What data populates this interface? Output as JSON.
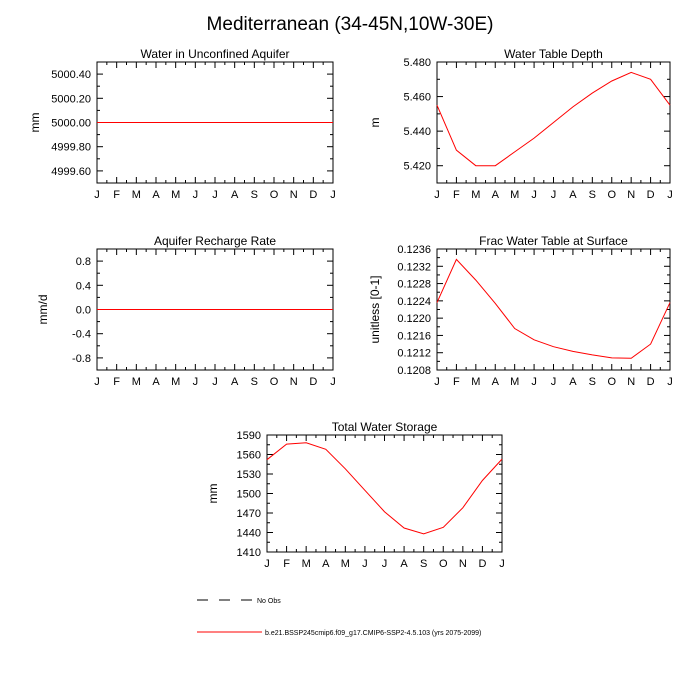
{
  "page_title": "Mediterranean (34-45N,10W-30E)",
  "colors": {
    "series": "#ff0000",
    "axis": "#000000",
    "background": "#ffffff"
  },
  "legend": {
    "items": [
      {
        "label": "No Obs",
        "style": "dashed",
        "color": "#000000"
      },
      {
        "label": "b.e21.BSSP245cmip6.f09_g17.CMIP6-SSP2-4.5.103 (yrs 2075-2099)",
        "style": "solid",
        "color": "#ff0000"
      }
    ]
  },
  "chart_data": [
    {
      "id": "water-unconfined-aquifer",
      "type": "line",
      "title": "Water in Unconfined Aquifer",
      "ylabel": "mm",
      "xlabel": "",
      "categories": [
        "J",
        "F",
        "M",
        "A",
        "M",
        "J",
        "J",
        "A",
        "S",
        "O",
        "N",
        "D",
        "J"
      ],
      "ylim": [
        4999.5,
        5000.5
      ],
      "yticks": [
        4999.6,
        4999.8,
        5000.0,
        5000.2,
        5000.4
      ],
      "ytick_labels": [
        "4999.60",
        "4999.80",
        "5000.00",
        "5000.20",
        "5000.40"
      ],
      "series": [
        {
          "name": "b.e21.BSSP245cmip6.f09_g17.CMIP6-SSP2-4.5.103",
          "values": [
            5000,
            5000,
            5000,
            5000,
            5000,
            5000,
            5000,
            5000,
            5000,
            5000,
            5000,
            5000,
            5000
          ]
        }
      ]
    },
    {
      "id": "water-table-depth",
      "type": "line",
      "title": "Water Table Depth",
      "ylabel": "m",
      "xlabel": "",
      "categories": [
        "J",
        "F",
        "M",
        "A",
        "M",
        "J",
        "J",
        "A",
        "S",
        "O",
        "N",
        "D",
        "J"
      ],
      "ylim": [
        5.41,
        5.48
      ],
      "yticks": [
        5.42,
        5.44,
        5.46,
        5.48
      ],
      "ytick_labels": [
        "5.420",
        "5.440",
        "5.460",
        "5.480"
      ],
      "series": [
        {
          "name": "b.e21.BSSP245cmip6.f09_g17.CMIP6-SSP2-4.5.103",
          "values": [
            5.455,
            5.429,
            5.42,
            5.42,
            5.428,
            5.436,
            5.445,
            5.454,
            5.462,
            5.469,
            5.474,
            5.47,
            5.455
          ]
        }
      ]
    },
    {
      "id": "aquifer-recharge-rate",
      "type": "line",
      "title": "Aquifer Recharge Rate",
      "ylabel": "mm/d",
      "xlabel": "",
      "categories": [
        "J",
        "F",
        "M",
        "A",
        "M",
        "J",
        "J",
        "A",
        "S",
        "O",
        "N",
        "D",
        "J"
      ],
      "ylim": [
        -1.0,
        1.0
      ],
      "yticks": [
        -0.8,
        -0.4,
        0.0,
        0.4,
        0.8
      ],
      "ytick_labels": [
        "-0.8",
        "-0.4",
        "0.0",
        "0.4",
        "0.8"
      ],
      "series": [
        {
          "name": "b.e21.BSSP245cmip6.f09_g17.CMIP6-SSP2-4.5.103",
          "values": [
            0,
            0,
            0,
            0,
            0,
            0,
            0,
            0,
            0,
            0,
            0,
            0,
            0
          ]
        }
      ]
    },
    {
      "id": "frac-water-table-surface",
      "type": "line",
      "title": "Frac Water Table at Surface",
      "ylabel": "unitless [0-1]",
      "xlabel": "",
      "categories": [
        "J",
        "F",
        "M",
        "A",
        "M",
        "J",
        "J",
        "A",
        "S",
        "O",
        "N",
        "D",
        "J"
      ],
      "ylim": [
        0.1208,
        0.1236
      ],
      "yticks": [
        0.1208,
        0.1212,
        0.1216,
        0.122,
        0.1224,
        0.1228,
        0.1232,
        0.1236
      ],
      "ytick_labels": [
        "0.1208",
        "0.1212",
        "0.1216",
        "0.1220",
        "0.1224",
        "0.1228",
        "0.1232",
        "0.1236"
      ],
      "series": [
        {
          "name": "b.e21.BSSP245cmip6.f09_g17.CMIP6-SSP2-4.5.103",
          "values": [
            0.12236,
            0.12336,
            0.12288,
            0.12234,
            0.12176,
            0.1215,
            0.12134,
            0.12123,
            0.12115,
            0.12108,
            0.12107,
            0.1214,
            0.12236
          ]
        }
      ]
    },
    {
      "id": "total-water-storage",
      "type": "line",
      "title": "Total Water Storage",
      "ylabel": "mm",
      "xlabel": "",
      "categories": [
        "J",
        "F",
        "M",
        "A",
        "M",
        "J",
        "J",
        "A",
        "S",
        "O",
        "N",
        "D",
        "J"
      ],
      "ylim": [
        1410,
        1590
      ],
      "yticks": [
        1410,
        1440,
        1470,
        1500,
        1530,
        1560,
        1590
      ],
      "ytick_labels": [
        "1410",
        "1440",
        "1470",
        "1500",
        "1530",
        "1560",
        "1590"
      ],
      "series": [
        {
          "name": "b.e21.BSSP245cmip6.f09_g17.CMIP6-SSP2-4.5.103",
          "values": [
            1552,
            1576,
            1578,
            1568,
            1538,
            1505,
            1472,
            1447,
            1438,
            1448,
            1478,
            1520,
            1553
          ]
        }
      ]
    }
  ]
}
